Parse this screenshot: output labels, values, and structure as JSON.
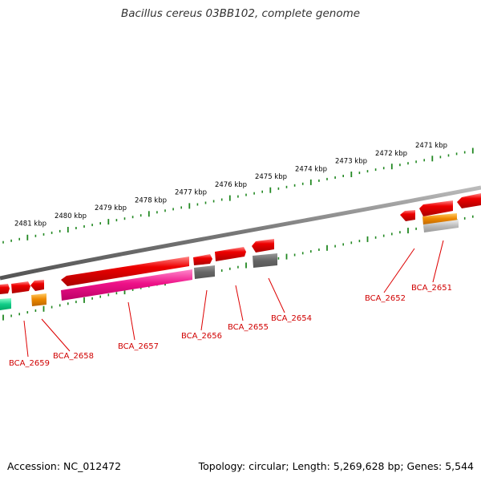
{
  "title": "Bacillus cereus 03BB102, complete genome",
  "footer": {
    "accession": "Accession: NC_012472",
    "summary": "Topology: circular; Length: 5,269,628 bp; Genes: 5,544"
  },
  "scale": {
    "ticks": [
      "2471 kbp",
      "2472 kbp",
      "2473 kbp",
      "2474 kbp",
      "2475 kbp",
      "2476 kbp",
      "2477 kbp",
      "2478 kbp",
      "2479 kbp",
      "2480 kbp",
      "2481 kbp"
    ]
  },
  "genes": [
    {
      "label": "BCA_2651",
      "color": "#999999"
    },
    {
      "label": "BCA_2652",
      "color": "#ee0000"
    },
    {
      "label": "BCA_2654",
      "color": "#666666"
    },
    {
      "label": "BCA_2655",
      "color": "#ee0000"
    },
    {
      "label": "BCA_2656",
      "color": "#666666"
    },
    {
      "label": "BCA_2657",
      "color": "#ee1188"
    },
    {
      "label": "BCA_2658",
      "color": "#ee8800"
    },
    {
      "label": "BCA_2659",
      "color": "#11cc88"
    }
  ],
  "colors": {
    "backbone": "#888888",
    "gene_forward": "#ee0000",
    "tick": "#228822",
    "label": "#cc0000"
  }
}
